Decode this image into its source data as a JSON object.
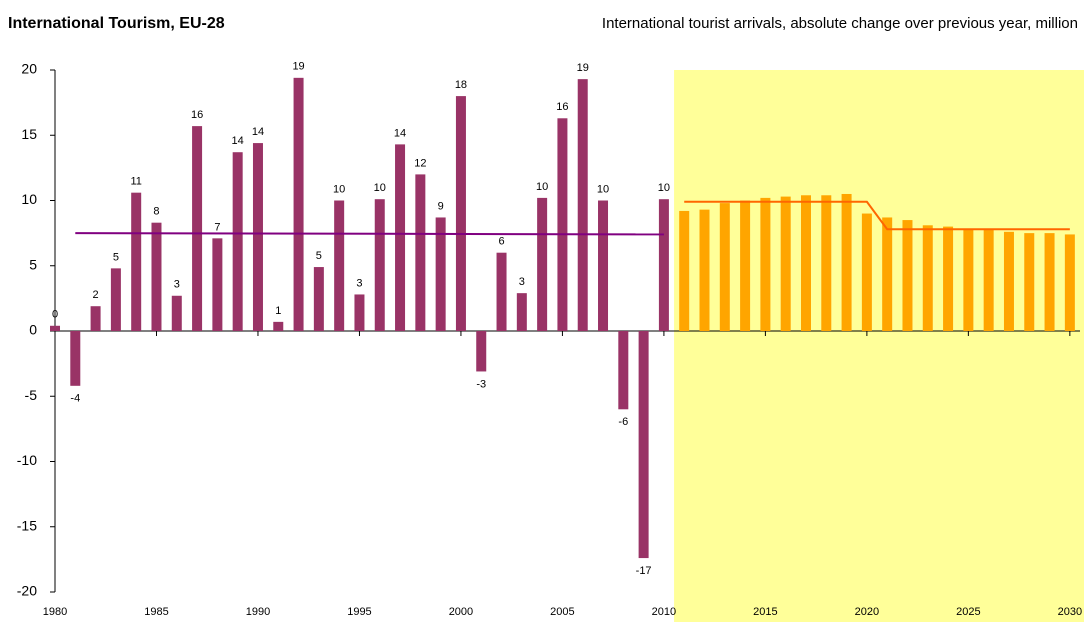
{
  "chart_data": {
    "type": "bar",
    "title": "International Tourism, EU-28",
    "subtitle": "International tourist arrivals, absolute change over previous year, million",
    "xlim": [
      1980,
      2030.5
    ],
    "xticks": [
      1980,
      1985,
      1990,
      1995,
      2000,
      2005,
      2010,
      2015,
      2020,
      2025,
      2030
    ],
    "ylim": [
      -20,
      20
    ],
    "yticks": [
      -20,
      -15,
      -10,
      -5,
      0,
      5,
      10,
      15,
      20
    ],
    "series": [
      {
        "color": "#993366",
        "x": [
          1980,
          1981,
          1982,
          1983,
          1984,
          1985,
          1986,
          1987,
          1988,
          1989,
          1990,
          1991,
          1992,
          1993,
          1994,
          1995,
          1996,
          1997,
          1998,
          1999,
          2000,
          2001,
          2002,
          2003,
          2004,
          2005,
          2006,
          2007,
          2008,
          2009,
          2010
        ],
        "values": [
          0.4,
          -4.2,
          1.9,
          4.8,
          10.6,
          8.3,
          2.7,
          15.7,
          7.1,
          13.7,
          14.4,
          0.7,
          19.4,
          4.9,
          10.0,
          2.8,
          10.1,
          14.3,
          12.0,
          8.7,
          18.0,
          -3.1,
          6.0,
          2.9,
          10.2,
          16.3,
          19.3,
          10.0,
          -6.0,
          -17.4,
          10.1
        ],
        "value_labels": [
          "0",
          "-4",
          "2",
          "5",
          "11",
          "8",
          "3",
          "16",
          "7",
          "14",
          "14",
          "1",
          "19",
          "5",
          "10",
          "3",
          "10",
          "14",
          "12",
          "9",
          "18",
          "-3",
          "6",
          "3",
          "10",
          "16",
          "19",
          "10",
          "-6",
          "-17",
          "10"
        ]
      },
      {
        "color": "#ffa500",
        "x": [
          2011,
          2012,
          2013,
          2014,
          2015,
          2016,
          2017,
          2018,
          2019,
          2020,
          2021,
          2022,
          2023,
          2024,
          2025,
          2026,
          2027,
          2028,
          2029,
          2030
        ],
        "values": [
          9.2,
          9.3,
          9.8,
          10.0,
          10.2,
          10.3,
          10.4,
          10.4,
          10.5,
          9.0,
          8.7,
          8.5,
          8.1,
          8.0,
          7.8,
          7.8,
          7.6,
          7.5,
          7.5,
          7.4
        ]
      }
    ],
    "lines": [
      {
        "color": "#800080",
        "x": [
          1981,
          2010
        ],
        "values": [
          7.5,
          7.4
        ]
      },
      {
        "color": "#ff6600",
        "x": [
          2011,
          2020,
          2021,
          2030
        ],
        "values": [
          9.9,
          9.9,
          7.8,
          7.8
        ]
      }
    ],
    "shade_color": "#ffff99"
  }
}
